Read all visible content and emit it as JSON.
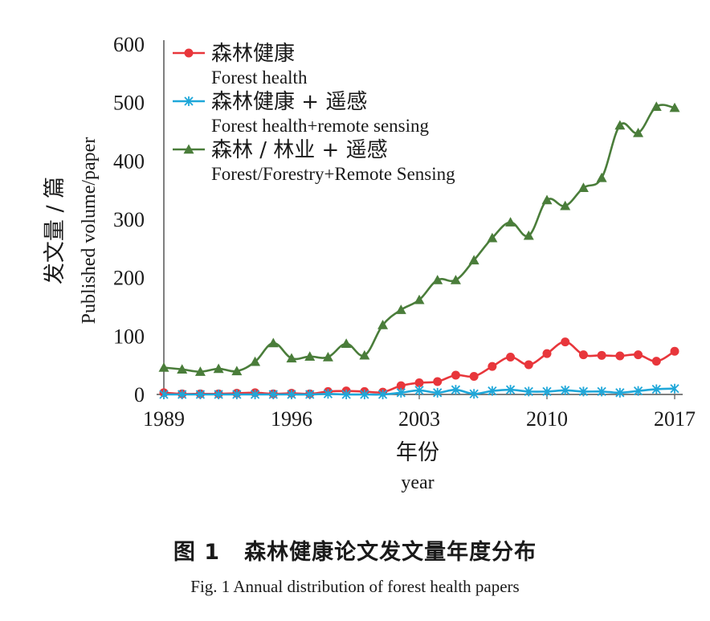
{
  "chart_data": {
    "type": "line",
    "ylabel_cn": "发文量 / 篇",
    "ylabel_en": "Published volume/paper",
    "xlabel_cn": "年份",
    "xlabel_en": "year",
    "ylim": [
      0,
      600
    ],
    "yticks": [
      "0",
      "100",
      "200",
      "300",
      "400",
      "500",
      "600"
    ],
    "xticks": [
      "1989",
      "1996",
      "2003",
      "2010",
      "2017"
    ],
    "x": [
      1989,
      1990,
      1991,
      1992,
      1993,
      1994,
      1995,
      1996,
      1997,
      1998,
      1999,
      2000,
      2001,
      2002,
      2003,
      2004,
      2005,
      2006,
      2007,
      2008,
      2009,
      2010,
      2011,
      2012,
      2013,
      2014,
      2015,
      2016,
      2017
    ],
    "grid": false,
    "legend_position": "top-left",
    "series": [
      {
        "name_cn": "森林健康",
        "name_en": "Forest health",
        "color": "#e8363b",
        "marker": "circle",
        "values": [
          3,
          1,
          1,
          1,
          2,
          3,
          1,
          2,
          1,
          5,
          6,
          5,
          4,
          15,
          20,
          22,
          33,
          31,
          48,
          64,
          51,
          70,
          90,
          68,
          67,
          66,
          68,
          57,
          74
        ]
      },
      {
        "name_cn": "森林健康 + 遥感",
        "name_en": "Forest health+remote sensing",
        "color": "#1fa7d9",
        "marker": "star",
        "values": [
          0,
          0,
          0,
          0,
          0,
          0,
          0,
          0,
          0,
          1,
          0,
          0,
          0,
          3,
          7,
          3,
          8,
          1,
          6,
          8,
          5,
          5,
          7,
          5,
          5,
          3,
          6,
          9,
          10
        ]
      },
      {
        "name_cn": "森林 / 林业 + 遥感",
        "name_en": "Forest/Forestry+Remote Sensing",
        "color": "#4a7d3a",
        "marker": "triangle",
        "values": [
          46,
          43,
          39,
          44,
          40,
          56,
          88,
          62,
          65,
          64,
          87,
          67,
          119,
          145,
          162,
          196,
          196,
          230,
          268,
          295,
          272,
          333,
          323,
          354,
          371,
          461,
          448,
          493,
          491
        ]
      }
    ]
  },
  "caption": {
    "cn_number": "图 1",
    "cn_title": "森林健康论文发文量年度分布",
    "en": "Fig. 1 Annual distribution of forest health papers"
  }
}
